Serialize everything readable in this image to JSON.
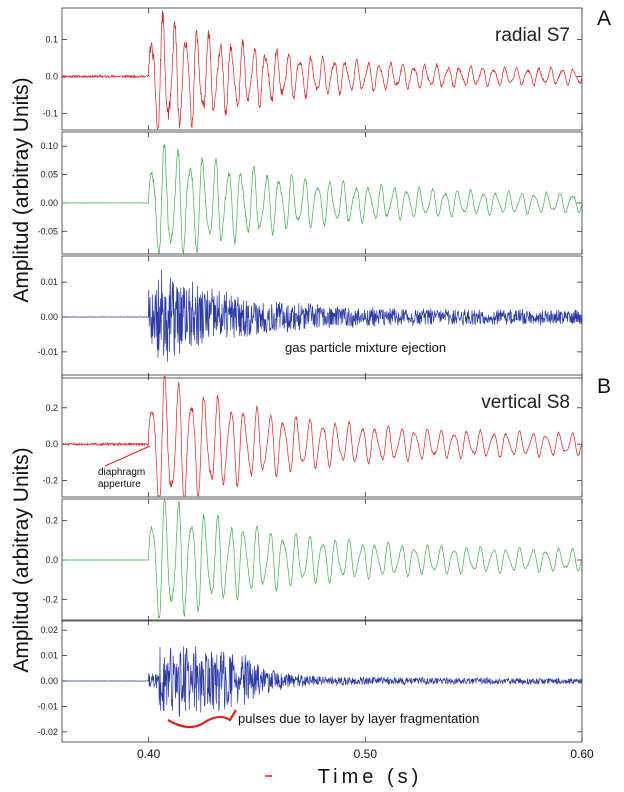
{
  "figure": {
    "panel_labels": [
      "A",
      "B"
    ],
    "y_axis_label": "Amplitud (arbitray Units)",
    "x_axis_label": "Time (s)"
  },
  "chart_data": {
    "type": "line",
    "x_range": [
      0.36,
      0.6
    ],
    "x_ticks": [
      0.4,
      0.5,
      0.6
    ],
    "x_tick_labels": [
      "0.40",
      "0.50",
      "0.60"
    ],
    "traces": [
      {
        "panel": "A",
        "label": "radial S7",
        "color": "#e02020",
        "ylim": [
          -0.145,
          0.185
        ],
        "y_ticks": [
          -0.1,
          0.0,
          0.1
        ],
        "y_tick_labels": [
          "-0.1",
          "0.0",
          "0.1"
        ],
        "onset_s": 0.4,
        "peak_amplitude": 0.16,
        "dominant_freq_hz": 190,
        "decay_s": 0.05,
        "noise": 0.14,
        "tail_amplitude": 0.018,
        "pre_noise": 0.003,
        "seed": 11
      },
      {
        "panel": "A",
        "color": "#3cb34a",
        "ylim": [
          -0.09,
          0.125
        ],
        "y_ticks": [
          -0.05,
          0.0,
          0.05,
          0.1
        ],
        "y_tick_labels": [
          "-0.05",
          "0.00",
          "0.05",
          "0.10"
        ],
        "onset_s": 0.4,
        "peak_amplitude": 0.095,
        "dominant_freq_hz": 170,
        "decay_s": 0.06,
        "noise": 0.08,
        "tail_amplitude": 0.012,
        "pre_noise": 0.0003,
        "seed": 23
      },
      {
        "panel": "A",
        "color": "#2b3aa8",
        "ylim": [
          -0.0175,
          0.0175
        ],
        "y_ticks": [
          -0.01,
          0.0,
          0.01
        ],
        "y_tick_labels": [
          "-0.01",
          "0.00",
          "0.01"
        ],
        "onset_s": 0.4,
        "peak_amplitude": 0.0145,
        "dominant_freq_hz": 900,
        "decay_s": 0.035,
        "noise": 0.9,
        "tail_amplitude": 0.0022,
        "pre_noise": 5e-05,
        "seed": 37,
        "annotation": "gas particle mixture ejection"
      },
      {
        "panel": "B",
        "label": "vertical S8",
        "color": "#e02020",
        "ylim": [
          -0.29,
          0.38
        ],
        "y_ticks": [
          -0.2,
          0.0,
          0.2
        ],
        "y_tick_labels": [
          "-0.2",
          "0.0",
          "0.2"
        ],
        "onset_s": 0.4,
        "peak_amplitude": 0.34,
        "dominant_freq_hz": 165,
        "decay_s": 0.05,
        "noise": 0.07,
        "tail_amplitude": 0.05,
        "pre_noise": 0.006,
        "seed": 51,
        "annotation": "diaphragm apperture"
      },
      {
        "panel": "B",
        "color": "#3cb34a",
        "ylim": [
          -0.31,
          0.31
        ],
        "y_ticks": [
          -0.2,
          0.0,
          0.2
        ],
        "y_tick_labels": [
          "-0.2",
          "0.0",
          "0.2"
        ],
        "onset_s": 0.4,
        "peak_amplitude": 0.29,
        "dominant_freq_hz": 165,
        "decay_s": 0.05,
        "noise": 0.06,
        "tail_amplitude": 0.045,
        "pre_noise": 0.0003,
        "seed": 63
      },
      {
        "panel": "B",
        "color": "#2b3aa8",
        "ylim": [
          -0.024,
          0.024
        ],
        "y_ticks": [
          -0.02,
          -0.01,
          0.0,
          0.01,
          0.02
        ],
        "y_tick_labels": [
          "-0.02",
          "-0.01",
          "0.00",
          "0.01",
          "0.02"
        ],
        "onset_s": 0.4,
        "peak_amplitude": 0.019,
        "dominant_freq_hz": 700,
        "decay_s": 0.012,
        "noise": 0.9,
        "tail_amplitude": 0.0012,
        "pre_noise": 5e-05,
        "seed": 77,
        "pulses_s": [
          0.405,
          0.414,
          0.421,
          0.427,
          0.434
        ],
        "annotation": "pulses due to layer by layer fragmentation"
      }
    ]
  }
}
